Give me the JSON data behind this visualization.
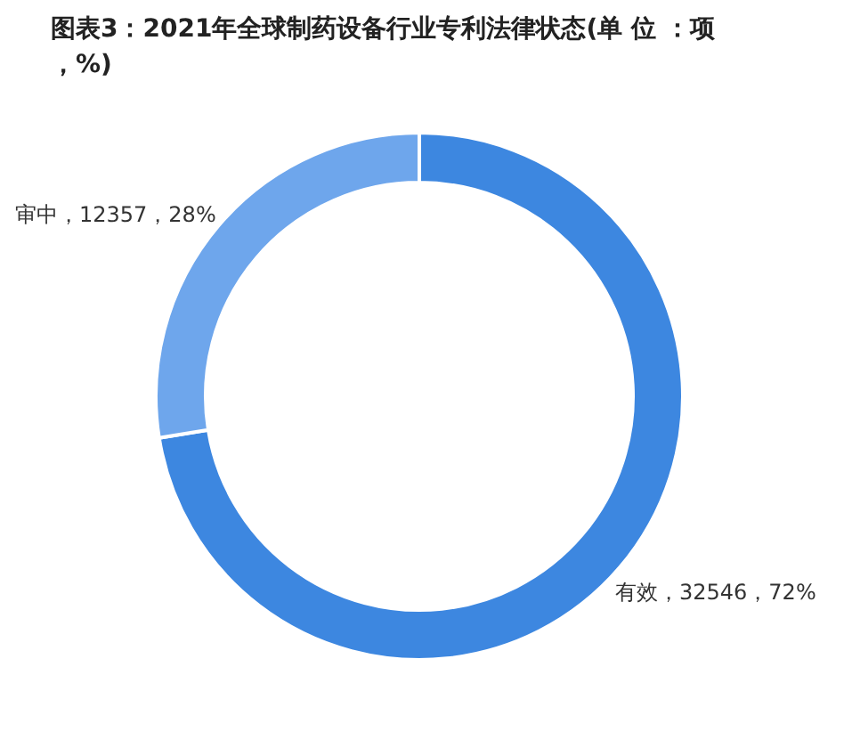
{
  "chart_data": {
    "type": "donut",
    "title": "图表3：2021年全球制药设备行业专利法律状态(单 位 ：项，%)",
    "categories": [
      "有效",
      "审中"
    ],
    "values": [
      32546,
      12357
    ],
    "colors": [
      "#3d87e0",
      "#6ea6ec"
    ],
    "value_labels": [
      "32546，72%",
      "12357，28%"
    ]
  }
}
